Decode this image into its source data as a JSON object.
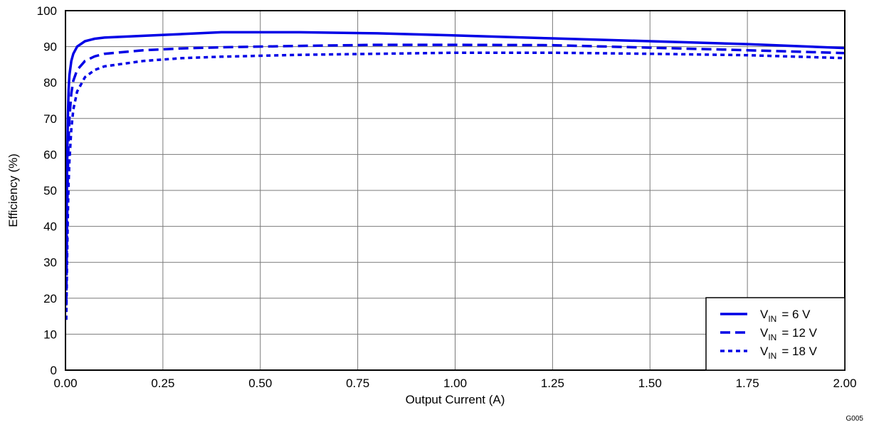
{
  "figure_id": "G005",
  "chart_data": {
    "type": "line",
    "title": "",
    "xlabel": "Output Current (A)",
    "ylabel": "Efficiency (%)",
    "xlim": [
      0,
      2
    ],
    "ylim": [
      0,
      100
    ],
    "xticks": [
      "0.00",
      "0.25",
      "0.50",
      "0.75",
      "1.00",
      "1.25",
      "1.50",
      "1.75",
      "2.00"
    ],
    "yticks": [
      "0",
      "10",
      "20",
      "30",
      "40",
      "50",
      "60",
      "70",
      "80",
      "90",
      "100"
    ],
    "grid": true,
    "legend_position": "bottom-right",
    "series": [
      {
        "name_main": "V",
        "name_sub": "IN",
        "name_value": "= 6 V",
        "style": "solid",
        "color": "#0000e6",
        "x": [
          0.002,
          0.004,
          0.006,
          0.008,
          0.01,
          0.015,
          0.02,
          0.03,
          0.05,
          0.075,
          0.1,
          0.2,
          0.3,
          0.4,
          0.6,
          0.8,
          1.0,
          1.25,
          1.5,
          1.75,
          2.0
        ],
        "y": [
          28,
          55,
          70,
          78,
          82,
          86,
          88,
          90,
          91.5,
          92.2,
          92.5,
          93,
          93.5,
          94,
          94,
          93.7,
          93.1,
          92.3,
          91.5,
          90.7,
          89.6
        ]
      },
      {
        "name_main": "V",
        "name_sub": "IN",
        "name_value": "= 12 V",
        "style": "dash",
        "color": "#0000e6",
        "x": [
          0.002,
          0.004,
          0.006,
          0.008,
          0.01,
          0.015,
          0.02,
          0.03,
          0.05,
          0.075,
          0.1,
          0.2,
          0.3,
          0.4,
          0.6,
          0.8,
          1.0,
          1.25,
          1.5,
          1.75,
          2.0
        ],
        "y": [
          18,
          40,
          55,
          64,
          70,
          77,
          80.5,
          83.5,
          86,
          87.3,
          88,
          89,
          89.5,
          89.8,
          90.2,
          90.5,
          90.5,
          90.4,
          89.7,
          89,
          88.2
        ]
      },
      {
        "name_main": "V",
        "name_sub": "IN",
        "name_value": "= 18 V",
        "style": "dot",
        "color": "#0000e6",
        "x": [
          0.002,
          0.004,
          0.006,
          0.008,
          0.01,
          0.015,
          0.02,
          0.03,
          0.05,
          0.075,
          0.1,
          0.2,
          0.3,
          0.4,
          0.6,
          0.8,
          1.0,
          1.25,
          1.5,
          1.75,
          2.0
        ],
        "y": [
          14,
          30,
          43,
          52,
          58,
          67,
          72.5,
          77.5,
          81.5,
          83.5,
          84.5,
          86,
          86.8,
          87.2,
          87.7,
          88,
          88.3,
          88.3,
          88,
          87.6,
          86.8
        ]
      }
    ]
  }
}
